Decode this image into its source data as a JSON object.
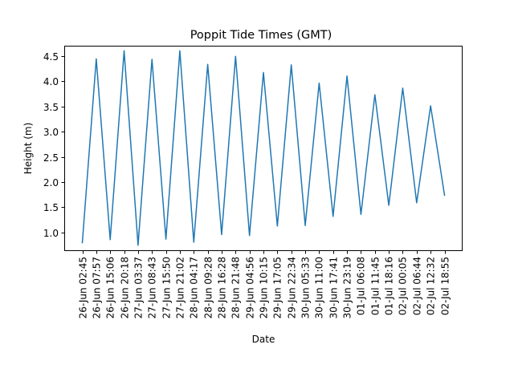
{
  "chart_data": {
    "type": "line",
    "title": "Poppit Tide Times (GMT)",
    "xlabel": "Date",
    "ylabel": "Height (m)",
    "ylim": [
      0.65,
      4.7
    ],
    "yticks": [
      "1.0",
      "1.5",
      "2.0",
      "2.5",
      "3.0",
      "3.5",
      "4.0",
      "4.5"
    ],
    "grid": false,
    "legend": "none",
    "colors": {
      "line": "#1f77b4",
      "axes": "#000000",
      "background": "#ffffff"
    },
    "x": [
      "26-Jun 02:45",
      "26-Jun 07:57",
      "26-Jun 15:06",
      "26-Jun 20:18",
      "27-Jun 03:37",
      "27-Jun 08:43",
      "27-Jun 15:50",
      "27-Jun 21:02",
      "28-Jun 04:17",
      "28-Jun 09:28",
      "28-Jun 16:28",
      "28-Jun 21:48",
      "29-Jun 04:56",
      "29-Jun 10:15",
      "29-Jun 17:05",
      "29-Jun 22:34",
      "30-Jun 05:33",
      "30-Jun 11:00",
      "30-Jun 17:41",
      "30-Jun 23:19",
      "01-Jul 06:08",
      "01-Jul 11:45",
      "01-Jul 18:16",
      "02-Jul 00:05",
      "02-Jul 06:44",
      "02-Jul 12:32",
      "02-Jul 18:55"
    ],
    "series": [
      {
        "values": [
          0.8,
          4.44,
          0.86,
          4.6,
          0.75,
          4.43,
          0.87,
          4.6,
          0.81,
          4.33,
          0.96,
          4.49,
          0.94,
          4.17,
          1.13,
          4.32,
          1.14,
          3.96,
          1.32,
          4.1,
          1.36,
          3.73,
          1.54,
          3.86,
          1.59,
          3.51,
          1.74
        ]
      }
    ]
  }
}
